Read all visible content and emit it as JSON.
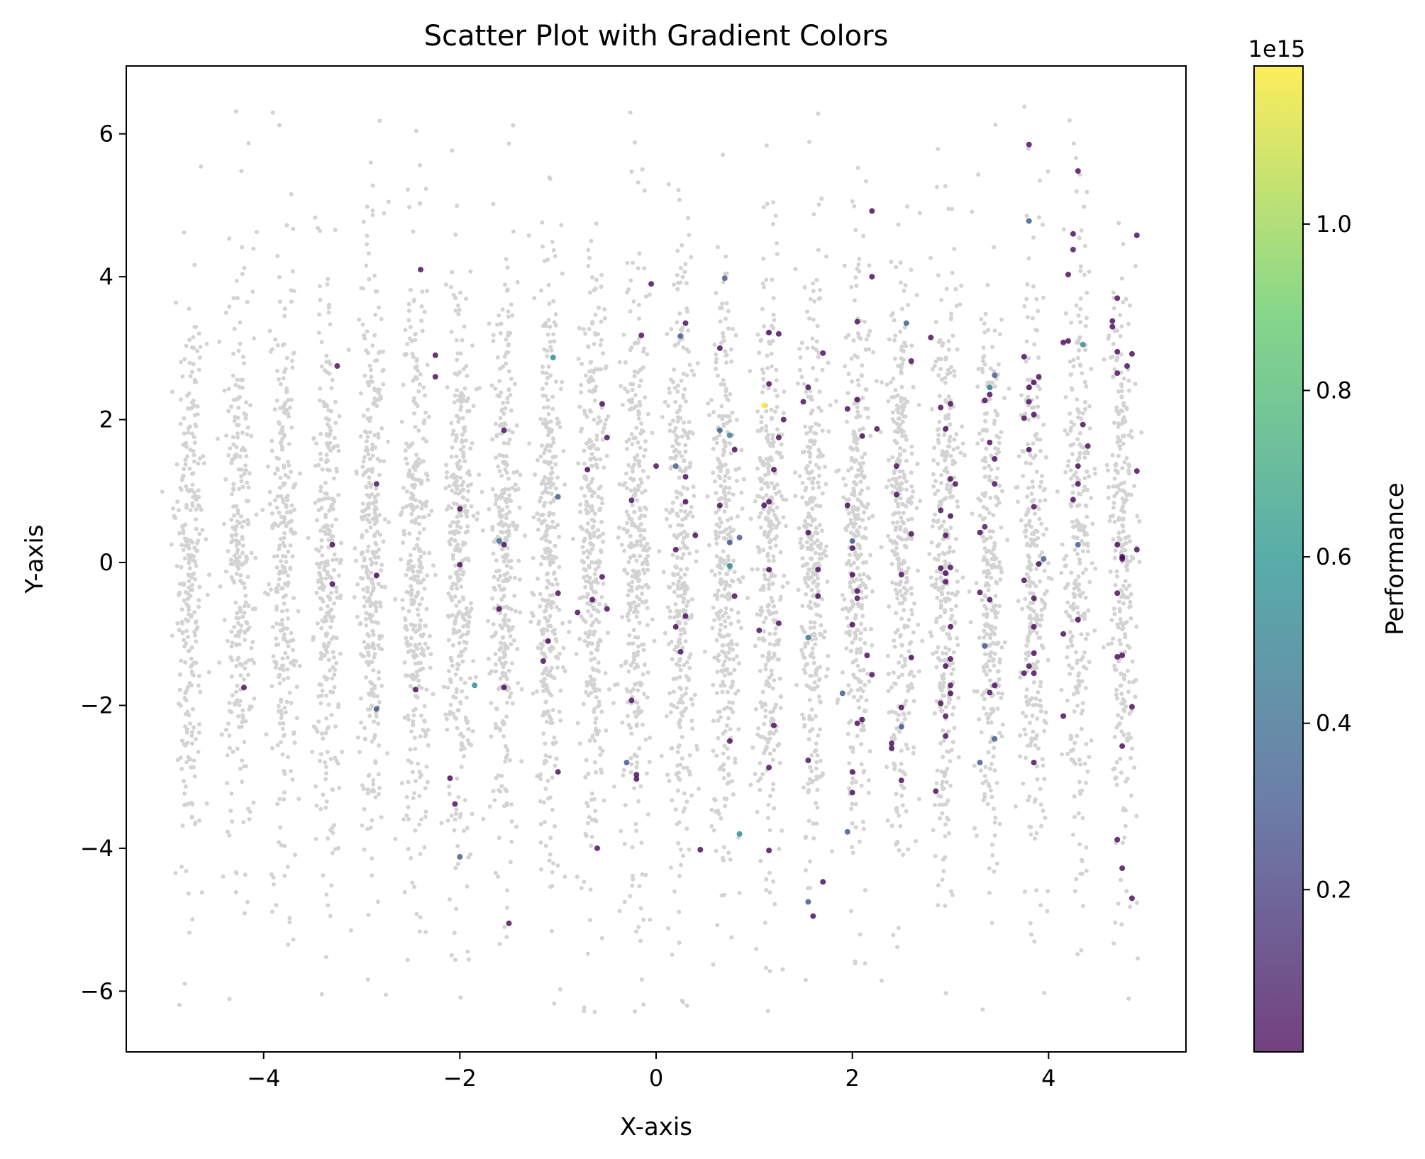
{
  "chart_data": {
    "type": "scatter",
    "title": "Scatter Plot with Gradient Colors",
    "xlabel": "X-axis",
    "ylabel": "Y-axis",
    "xlim": [
      -5.4,
      5.4
    ],
    "ylim": [
      -6.85,
      6.95
    ],
    "x_ticks": [
      -4,
      -2,
      0,
      2,
      4
    ],
    "x_tick_labels": [
      "−4",
      "−2",
      "0",
      "2",
      "4"
    ],
    "y_ticks": [
      -6,
      -4,
      -2,
      0,
      2,
      4,
      6
    ],
    "y_tick_labels": [
      "−6",
      "−4",
      "−2",
      "0",
      "2",
      "4",
      "6"
    ],
    "grid": false,
    "background_series": {
      "color": "#d3d3d3",
      "x_columns": [
        -4.75,
        -4.25,
        -3.8,
        -3.35,
        -2.9,
        -2.45,
        -2.0,
        -1.55,
        -1.1,
        -0.65,
        -0.2,
        0.25,
        0.7,
        1.15,
        1.6,
        2.05,
        2.5,
        2.95,
        3.4,
        3.85,
        4.3,
        4.75
      ],
      "y_range": [
        -6.3,
        6.4
      ],
      "approx_point_count": 6000
    },
    "colorbar": {
      "label": "Performance",
      "offset_text": "1e15",
      "range": [
        0.005,
        1.19
      ],
      "ticks": [
        0.2,
        0.4,
        0.6,
        0.8,
        1.0
      ],
      "tick_labels": [
        "0.2",
        "0.4",
        "0.6",
        "0.8",
        "1.0"
      ],
      "colormap": [
        "#440154",
        "#3b528b",
        "#21918c",
        "#5ec962",
        "#fde725"
      ]
    },
    "highlighted_points": [
      {
        "x": -4.2,
        "y": -1.75,
        "v": 0.01
      },
      {
        "x": -3.3,
        "y": 0.25,
        "v": 0.01
      },
      {
        "x": -3.25,
        "y": 2.75,
        "v": 0.01
      },
      {
        "x": -3.3,
        "y": -0.3,
        "v": 0.01
      },
      {
        "x": -2.85,
        "y": 1.1,
        "v": 0.05
      },
      {
        "x": -2.85,
        "y": -0.18,
        "v": 0.01
      },
      {
        "x": -2.85,
        "y": -2.05,
        "v": 0.3
      },
      {
        "x": -2.4,
        "y": 4.1,
        "v": 0.01
      },
      {
        "x": -2.25,
        "y": 2.9,
        "v": 0.01
      },
      {
        "x": -2.25,
        "y": 2.6,
        "v": 0.01
      },
      {
        "x": -2.45,
        "y": -1.78,
        "v": 0.01
      },
      {
        "x": -2.0,
        "y": 0.75,
        "v": 0.01
      },
      {
        "x": -2.0,
        "y": -0.03,
        "v": 0.01
      },
      {
        "x": -1.85,
        "y": -1.72,
        "v": 0.55
      },
      {
        "x": -2.1,
        "y": -3.02,
        "v": 0.02
      },
      {
        "x": -2.05,
        "y": -3.38,
        "v": 0.02
      },
      {
        "x": -2.0,
        "y": -4.12,
        "v": 0.3
      },
      {
        "x": -1.55,
        "y": 1.85,
        "v": 0.01
      },
      {
        "x": -1.6,
        "y": 0.3,
        "v": 0.4
      },
      {
        "x": -1.55,
        "y": 0.25,
        "v": 0.05
      },
      {
        "x": -1.6,
        "y": -0.65,
        "v": 0.01
      },
      {
        "x": -1.55,
        "y": -1.75,
        "v": 0.01
      },
      {
        "x": -1.5,
        "y": -5.05,
        "v": 0.01
      },
      {
        "x": -1.05,
        "y": 2.87,
        "v": 0.55
      },
      {
        "x": -1.0,
        "y": 0.92,
        "v": 0.3
      },
      {
        "x": -1.0,
        "y": -0.43,
        "v": 0.01
      },
      {
        "x": -1.1,
        "y": -1.1,
        "v": 0.01
      },
      {
        "x": -1.15,
        "y": -1.38,
        "v": 0.01
      },
      {
        "x": -1.0,
        "y": -2.93,
        "v": 0.02
      },
      {
        "x": -0.55,
        "y": 2.22,
        "v": 0.01
      },
      {
        "x": -0.5,
        "y": 1.75,
        "v": 0.01
      },
      {
        "x": -0.7,
        "y": 1.3,
        "v": 0.01
      },
      {
        "x": -0.55,
        "y": -0.2,
        "v": 0.01
      },
      {
        "x": -0.65,
        "y": -0.52,
        "v": 0.01
      },
      {
        "x": -0.5,
        "y": -0.65,
        "v": 0.01
      },
      {
        "x": -0.8,
        "y": -0.7,
        "v": 0.01
      },
      {
        "x": -0.6,
        "y": -4.0,
        "v": 0.01
      },
      {
        "x": -0.15,
        "y": 3.18,
        "v": 0.01
      },
      {
        "x": -0.25,
        "y": 0.87,
        "v": 0.01
      },
      {
        "x": -0.25,
        "y": -1.93,
        "v": 0.02
      },
      {
        "x": -0.3,
        "y": -2.8,
        "v": 0.3
      },
      {
        "x": -0.2,
        "y": -2.97,
        "v": 0.01
      },
      {
        "x": -0.2,
        "y": -3.03,
        "v": 0.01
      },
      {
        "x": -0.05,
        "y": 3.9,
        "v": 0.01
      },
      {
        "x": 0.0,
        "y": 1.35,
        "v": 0.02
      },
      {
        "x": 0.3,
        "y": 3.35,
        "v": 0.01
      },
      {
        "x": 0.25,
        "y": 3.17,
        "v": 0.3
      },
      {
        "x": 0.2,
        "y": 1.35,
        "v": 0.3
      },
      {
        "x": 0.3,
        "y": 1.2,
        "v": 0.01
      },
      {
        "x": 0.3,
        "y": 0.85,
        "v": 0.01
      },
      {
        "x": 0.2,
        "y": 0.18,
        "v": 0.01
      },
      {
        "x": 0.4,
        "y": 0.38,
        "v": 0.01
      },
      {
        "x": 0.3,
        "y": -0.75,
        "v": 0.01
      },
      {
        "x": 0.2,
        "y": -0.9,
        "v": 0.01
      },
      {
        "x": 0.25,
        "y": -1.25,
        "v": 0.01
      },
      {
        "x": 0.45,
        "y": -4.02,
        "v": 0.01
      },
      {
        "x": 0.7,
        "y": 3.98,
        "v": 0.3
      },
      {
        "x": 0.65,
        "y": 3.0,
        "v": 0.01
      },
      {
        "x": 0.65,
        "y": 1.85,
        "v": 0.3
      },
      {
        "x": 0.75,
        "y": 1.78,
        "v": 0.5
      },
      {
        "x": 0.8,
        "y": 1.58,
        "v": 0.01
      },
      {
        "x": 0.65,
        "y": 0.8,
        "v": 0.01
      },
      {
        "x": 0.85,
        "y": 0.35,
        "v": 0.3
      },
      {
        "x": 0.75,
        "y": 0.28,
        "v": 0.3
      },
      {
        "x": 0.75,
        "y": -0.05,
        "v": 0.55
      },
      {
        "x": 0.8,
        "y": -0.47,
        "v": 0.01
      },
      {
        "x": 0.75,
        "y": -2.5,
        "v": 0.01
      },
      {
        "x": 0.85,
        "y": -3.8,
        "v": 0.55
      },
      {
        "x": 1.15,
        "y": 3.22,
        "v": 0.01
      },
      {
        "x": 1.25,
        "y": 3.2,
        "v": 0.01
      },
      {
        "x": 1.15,
        "y": 2.5,
        "v": 0.01
      },
      {
        "x": 1.1,
        "y": 2.2,
        "v": 1.19
      },
      {
        "x": 1.3,
        "y": 2.0,
        "v": 0.01
      },
      {
        "x": 1.25,
        "y": 1.75,
        "v": 0.01
      },
      {
        "x": 1.2,
        "y": 1.3,
        "v": 0.01
      },
      {
        "x": 1.15,
        "y": 0.85,
        "v": 0.01
      },
      {
        "x": 1.1,
        "y": 0.8,
        "v": 0.01
      },
      {
        "x": 1.15,
        "y": -0.1,
        "v": 0.01
      },
      {
        "x": 1.05,
        "y": -0.95,
        "v": 0.01
      },
      {
        "x": 1.25,
        "y": -0.85,
        "v": 0.01
      },
      {
        "x": 1.2,
        "y": -2.28,
        "v": 0.01
      },
      {
        "x": 1.15,
        "y": -2.87,
        "v": 0.01
      },
      {
        "x": 1.15,
        "y": -4.03,
        "v": 0.01
      },
      {
        "x": 1.55,
        "y": 2.45,
        "v": 0.01
      },
      {
        "x": 1.5,
        "y": 2.25,
        "v": 0.01
      },
      {
        "x": 1.7,
        "y": 2.93,
        "v": 0.01
      },
      {
        "x": 1.55,
        "y": 0.42,
        "v": 0.01
      },
      {
        "x": 1.65,
        "y": -0.1,
        "v": 0.01
      },
      {
        "x": 1.65,
        "y": -0.47,
        "v": 0.01
      },
      {
        "x": 1.55,
        "y": -1.05,
        "v": 0.45
      },
      {
        "x": 1.55,
        "y": -2.77,
        "v": 0.01
      },
      {
        "x": 1.7,
        "y": -4.47,
        "v": 0.01
      },
      {
        "x": 1.55,
        "y": -4.75,
        "v": 0.3
      },
      {
        "x": 1.6,
        "y": -4.95,
        "v": 0.01
      },
      {
        "x": 2.2,
        "y": 4.92,
        "v": 0.01
      },
      {
        "x": 2.2,
        "y": 4.0,
        "v": 0.01
      },
      {
        "x": 2.05,
        "y": 3.37,
        "v": 0.01
      },
      {
        "x": 2.05,
        "y": 2.28,
        "v": 0.01
      },
      {
        "x": 1.95,
        "y": 2.15,
        "v": 0.01
      },
      {
        "x": 2.25,
        "y": 1.87,
        "v": 0.01
      },
      {
        "x": 2.1,
        "y": 1.77,
        "v": 0.01
      },
      {
        "x": 1.95,
        "y": 0.8,
        "v": 0.01
      },
      {
        "x": 2.0,
        "y": 0.3,
        "v": 0.3
      },
      {
        "x": 2.0,
        "y": 0.2,
        "v": 0.01
      },
      {
        "x": 2.0,
        "y": -0.17,
        "v": 0.01
      },
      {
        "x": 2.05,
        "y": -0.4,
        "v": 0.01
      },
      {
        "x": 2.05,
        "y": -0.5,
        "v": 0.01
      },
      {
        "x": 2.0,
        "y": -0.87,
        "v": 0.01
      },
      {
        "x": 2.15,
        "y": -1.3,
        "v": 0.01
      },
      {
        "x": 2.2,
        "y": -1.57,
        "v": 0.01
      },
      {
        "x": 1.9,
        "y": -1.83,
        "v": 0.3
      },
      {
        "x": 2.05,
        "y": -2.25,
        "v": 0.01
      },
      {
        "x": 2.1,
        "y": -2.2,
        "v": 0.01
      },
      {
        "x": 2.0,
        "y": -2.93,
        "v": 0.01
      },
      {
        "x": 2.0,
        "y": -3.22,
        "v": 0.05
      },
      {
        "x": 1.95,
        "y": -3.77,
        "v": 0.3
      },
      {
        "x": 2.55,
        "y": 3.35,
        "v": 0.3
      },
      {
        "x": 2.6,
        "y": 2.82,
        "v": 0.01
      },
      {
        "x": 2.45,
        "y": 1.35,
        "v": 0.01
      },
      {
        "x": 2.45,
        "y": 0.95,
        "v": 0.01
      },
      {
        "x": 2.6,
        "y": 0.4,
        "v": 0.01
      },
      {
        "x": 2.5,
        "y": -0.17,
        "v": 0.01
      },
      {
        "x": 2.6,
        "y": -1.33,
        "v": 0.01
      },
      {
        "x": 2.5,
        "y": -2.03,
        "v": 0.01
      },
      {
        "x": 2.5,
        "y": -2.3,
        "v": 0.3
      },
      {
        "x": 2.4,
        "y": -2.53,
        "v": 0.01
      },
      {
        "x": 2.4,
        "y": -2.6,
        "v": 0.01
      },
      {
        "x": 2.5,
        "y": -3.05,
        "v": 0.01
      },
      {
        "x": 2.8,
        "y": 3.15,
        "v": 0.01
      },
      {
        "x": 2.9,
        "y": 2.17,
        "v": 0.01
      },
      {
        "x": 3.0,
        "y": 2.22,
        "v": 0.01
      },
      {
        "x": 2.95,
        "y": 1.87,
        "v": 0.01
      },
      {
        "x": 3.0,
        "y": 1.17,
        "v": 0.01
      },
      {
        "x": 3.05,
        "y": 1.1,
        "v": 0.01
      },
      {
        "x": 2.9,
        "y": 0.73,
        "v": 0.01
      },
      {
        "x": 3.0,
        "y": 0.65,
        "v": 0.01
      },
      {
        "x": 2.95,
        "y": 0.38,
        "v": 0.01
      },
      {
        "x": 2.9,
        "y": -0.08,
        "v": 0.01
      },
      {
        "x": 3.0,
        "y": -0.07,
        "v": 0.01
      },
      {
        "x": 2.95,
        "y": -0.15,
        "v": 0.01
      },
      {
        "x": 2.95,
        "y": -0.27,
        "v": 0.01
      },
      {
        "x": 3.0,
        "y": -0.9,
        "v": 0.01
      },
      {
        "x": 3.0,
        "y": -1.35,
        "v": 0.01
      },
      {
        "x": 2.95,
        "y": -1.45,
        "v": 0.01
      },
      {
        "x": 3.0,
        "y": -1.72,
        "v": 0.01
      },
      {
        "x": 3.0,
        "y": -1.83,
        "v": 0.01
      },
      {
        "x": 2.9,
        "y": -1.97,
        "v": 0.01
      },
      {
        "x": 2.95,
        "y": -2.15,
        "v": 0.01
      },
      {
        "x": 2.95,
        "y": -2.43,
        "v": 0.01
      },
      {
        "x": 2.85,
        "y": -3.2,
        "v": 0.01
      },
      {
        "x": 3.45,
        "y": 2.62,
        "v": 0.3
      },
      {
        "x": 3.4,
        "y": 2.45,
        "v": 0.5
      },
      {
        "x": 3.4,
        "y": 2.35,
        "v": 0.01
      },
      {
        "x": 3.35,
        "y": 2.27,
        "v": 0.01
      },
      {
        "x": 3.4,
        "y": 1.68,
        "v": 0.01
      },
      {
        "x": 3.45,
        "y": 1.45,
        "v": 0.01
      },
      {
        "x": 3.45,
        "y": 1.1,
        "v": 0.01
      },
      {
        "x": 3.35,
        "y": 0.5,
        "v": 0.05
      },
      {
        "x": 3.3,
        "y": 0.42,
        "v": 0.01
      },
      {
        "x": 3.3,
        "y": -0.42,
        "v": 0.01
      },
      {
        "x": 3.4,
        "y": -0.52,
        "v": 0.01
      },
      {
        "x": 3.35,
        "y": -1.17,
        "v": 0.3
      },
      {
        "x": 3.45,
        "y": -1.72,
        "v": 0.01
      },
      {
        "x": 3.4,
        "y": -1.82,
        "v": 0.01
      },
      {
        "x": 3.45,
        "y": -2.47,
        "v": 0.3
      },
      {
        "x": 3.3,
        "y": -2.8,
        "v": 0.3
      },
      {
        "x": 3.8,
        "y": 5.85,
        "v": 0.01
      },
      {
        "x": 3.8,
        "y": 4.78,
        "v": 0.3
      },
      {
        "x": 3.75,
        "y": 2.88,
        "v": 0.01
      },
      {
        "x": 3.85,
        "y": 2.52,
        "v": 0.01
      },
      {
        "x": 3.8,
        "y": 2.45,
        "v": 0.01
      },
      {
        "x": 3.9,
        "y": 2.6,
        "v": 0.01
      },
      {
        "x": 3.8,
        "y": 2.25,
        "v": 0.01
      },
      {
        "x": 3.85,
        "y": 2.07,
        "v": 0.01
      },
      {
        "x": 3.75,
        "y": 2.02,
        "v": 0.01
      },
      {
        "x": 3.8,
        "y": 1.58,
        "v": 0.01
      },
      {
        "x": 3.85,
        "y": 0.78,
        "v": 0.01
      },
      {
        "x": 3.95,
        "y": 0.05,
        "v": 0.3
      },
      {
        "x": 3.9,
        "y": -0.02,
        "v": 0.01
      },
      {
        "x": 3.75,
        "y": -0.25,
        "v": 0.01
      },
      {
        "x": 3.85,
        "y": -0.5,
        "v": 0.01
      },
      {
        "x": 3.85,
        "y": -0.9,
        "v": 0.01
      },
      {
        "x": 3.85,
        "y": -1.27,
        "v": 0.01
      },
      {
        "x": 3.8,
        "y": -1.45,
        "v": 0.01
      },
      {
        "x": 3.85,
        "y": -1.55,
        "v": 0.01
      },
      {
        "x": 3.75,
        "y": -1.55,
        "v": 0.01
      },
      {
        "x": 3.85,
        "y": -2.8,
        "v": 0.01
      },
      {
        "x": 4.3,
        "y": 5.48,
        "v": 0.01
      },
      {
        "x": 4.25,
        "y": 4.6,
        "v": 0.01
      },
      {
        "x": 4.25,
        "y": 4.38,
        "v": 0.05
      },
      {
        "x": 4.2,
        "y": 4.03,
        "v": 0.01
      },
      {
        "x": 4.2,
        "y": 3.1,
        "v": 0.01
      },
      {
        "x": 4.15,
        "y": 3.08,
        "v": 0.01
      },
      {
        "x": 4.35,
        "y": 3.05,
        "v": 0.55
      },
      {
        "x": 4.35,
        "y": 1.93,
        "v": 0.01
      },
      {
        "x": 4.4,
        "y": 1.63,
        "v": 0.01
      },
      {
        "x": 4.3,
        "y": 1.35,
        "v": 0.01
      },
      {
        "x": 4.3,
        "y": 1.1,
        "v": 0.01
      },
      {
        "x": 4.25,
        "y": 0.88,
        "v": 0.01
      },
      {
        "x": 4.3,
        "y": 0.25,
        "v": 0.3
      },
      {
        "x": 4.3,
        "y": -0.8,
        "v": 0.01
      },
      {
        "x": 4.15,
        "y": -1.0,
        "v": 0.01
      },
      {
        "x": 4.15,
        "y": -2.15,
        "v": 0.01
      },
      {
        "x": 4.7,
        "y": 3.7,
        "v": 0.01
      },
      {
        "x": 4.65,
        "y": 3.38,
        "v": 0.01
      },
      {
        "x": 4.65,
        "y": 3.3,
        "v": 0.01
      },
      {
        "x": 4.7,
        "y": 2.95,
        "v": 0.01
      },
      {
        "x": 4.85,
        "y": 2.92,
        "v": 0.01
      },
      {
        "x": 4.8,
        "y": 2.75,
        "v": 0.01
      },
      {
        "x": 4.7,
        "y": 2.65,
        "v": 0.01
      },
      {
        "x": 4.9,
        "y": 4.58,
        "v": 0.01
      },
      {
        "x": 4.9,
        "y": 1.28,
        "v": 0.01
      },
      {
        "x": 4.7,
        "y": 0.25,
        "v": 0.01
      },
      {
        "x": 4.75,
        "y": 0.08,
        "v": 0.01
      },
      {
        "x": 4.75,
        "y": 0.05,
        "v": 0.01
      },
      {
        "x": 4.9,
        "y": 0.18,
        "v": 0.01
      },
      {
        "x": 4.7,
        "y": -0.43,
        "v": 0.01
      },
      {
        "x": 4.7,
        "y": -1.32,
        "v": 0.01
      },
      {
        "x": 4.75,
        "y": -1.3,
        "v": 0.01
      },
      {
        "x": 4.85,
        "y": -2.02,
        "v": 0.01
      },
      {
        "x": 4.75,
        "y": -2.57,
        "v": 0.01
      },
      {
        "x": 4.7,
        "y": -3.88,
        "v": 0.01
      },
      {
        "x": 4.75,
        "y": -4.28,
        "v": 0.01
      },
      {
        "x": 4.85,
        "y": -4.7,
        "v": 0.01
      }
    ]
  }
}
